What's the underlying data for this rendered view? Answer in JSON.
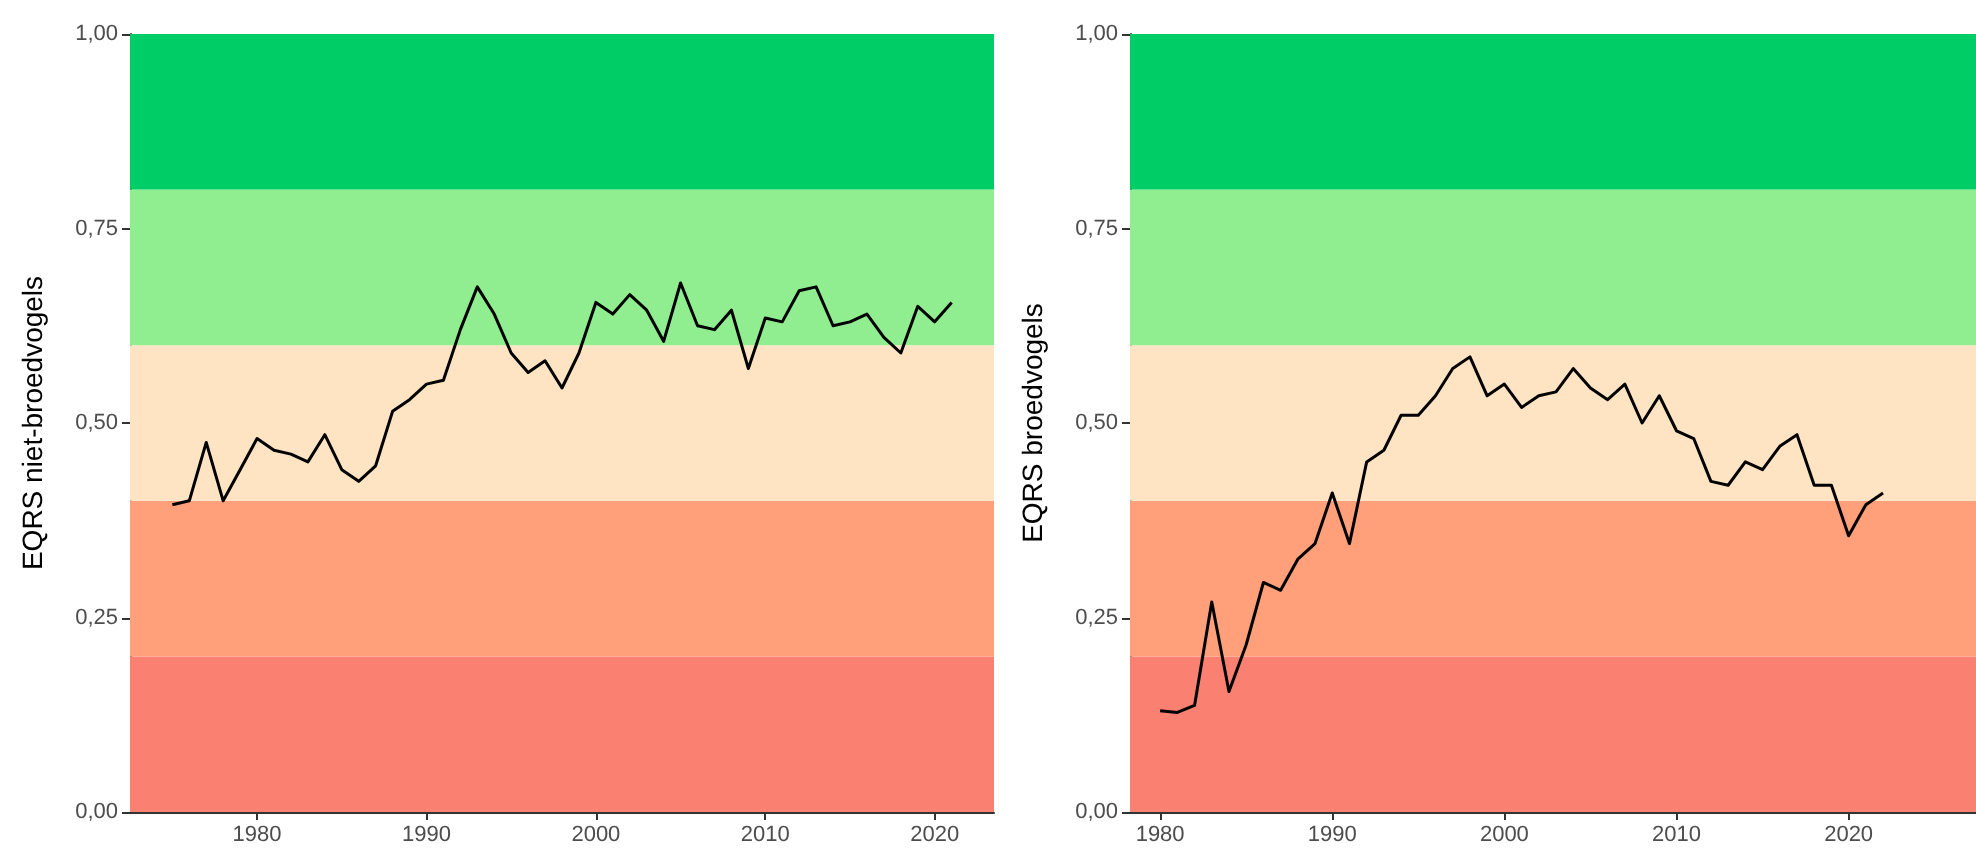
{
  "chart_data": [
    {
      "type": "line",
      "ylabel": "EQRS niet-broedvogels",
      "x": [
        1975,
        1976,
        1977,
        1978,
        1979,
        1980,
        1981,
        1982,
        1983,
        1984,
        1985,
        1986,
        1987,
        1988,
        1989,
        1990,
        1991,
        1992,
        1993,
        1994,
        1995,
        1996,
        1997,
        1998,
        1999,
        2000,
        2001,
        2002,
        2003,
        2004,
        2005,
        2006,
        2007,
        2008,
        2009,
        2010,
        2011,
        2012,
        2013,
        2014,
        2015,
        2016,
        2017,
        2018,
        2019,
        2020,
        2021
      ],
      "series": [
        {
          "color": "#000000",
          "values": [
            0.395,
            0.4,
            0.475,
            0.4,
            0.44,
            0.48,
            0.465,
            0.46,
            0.45,
            0.485,
            0.44,
            0.425,
            0.445,
            0.515,
            0.53,
            0.55,
            0.555,
            0.62,
            0.675,
            0.64,
            0.59,
            0.565,
            0.58,
            0.545,
            0.59,
            0.655,
            0.64,
            0.665,
            0.645,
            0.605,
            0.68,
            0.625,
            0.62,
            0.645,
            0.57,
            0.635,
            0.63,
            0.67,
            0.675,
            0.625,
            0.63,
            0.64,
            0.61,
            0.59,
            0.65,
            0.63,
            0.655
          ]
        }
      ],
      "xlim": [
        1972.5,
        2023.5
      ],
      "xticks": [
        1980,
        1990,
        2000,
        2010,
        2020
      ],
      "ylim": [
        0,
        1
      ],
      "yticks": [
        {
          "value": 0,
          "label": "0,00"
        },
        {
          "value": 0.25,
          "label": "0,25"
        },
        {
          "value": 0.5,
          "label": "0,50"
        },
        {
          "value": 0.75,
          "label": "0,75"
        },
        {
          "value": 1,
          "label": "1,00"
        }
      ],
      "bands": [
        {
          "axis": "y",
          "from": 0,
          "to": 0.2,
          "color": "#fa8072"
        },
        {
          "axis": "y",
          "from": 0.2,
          "to": 0.4,
          "color": "#ffa07a"
        },
        {
          "axis": "y",
          "from": 0.4,
          "to": 0.6,
          "color": "#ffe4c4"
        },
        {
          "axis": "y",
          "from": 0.6,
          "to": 0.8,
          "color": "#90ee90"
        },
        {
          "axis": "y",
          "from": 0.8,
          "to": 1,
          "color": "#00cd66"
        }
      ],
      "grid": false,
      "marker": "none",
      "line_style": "solid"
    },
    {
      "type": "line",
      "ylabel": "EQRS broedvogels",
      "x": [
        1980,
        1981,
        1982,
        1983,
        1984,
        1985,
        1986,
        1987,
        1988,
        1989,
        1990,
        1991,
        1992,
        1993,
        1994,
        1995,
        1996,
        1997,
        1998,
        1999,
        2000,
        2001,
        2002,
        2003,
        2004,
        2005,
        2006,
        2007,
        2008,
        2009,
        2010,
        2011,
        2012,
        2013,
        2014,
        2015,
        2016,
        2017,
        2018,
        2019,
        2020,
        2021,
        2022
      ],
      "series": [
        {
          "color": "#000000",
          "values": [
            0.13,
            0.128,
            0.137,
            0.27,
            0.155,
            0.215,
            0.295,
            0.285,
            0.325,
            0.345,
            0.41,
            0.345,
            0.45,
            0.465,
            0.51,
            0.51,
            0.535,
            0.57,
            0.585,
            0.535,
            0.55,
            0.52,
            0.535,
            0.54,
            0.57,
            0.545,
            0.53,
            0.55,
            0.5,
            0.535,
            0.49,
            0.48,
            0.425,
            0.42,
            0.45,
            0.44,
            0.47,
            0.485,
            0.42,
            0.42,
            0.355,
            0.395,
            0.41
          ]
        }
      ],
      "xlim": [
        1978.25,
        2027.4
      ],
      "xticks": [
        1980,
        1990,
        2000,
        2010,
        2020
      ],
      "ylim": [
        0,
        1
      ],
      "yticks": [
        {
          "value": 0,
          "label": "0,00"
        },
        {
          "value": 0.25,
          "label": "0,25"
        },
        {
          "value": 0.5,
          "label": "0,50"
        },
        {
          "value": 0.75,
          "label": "0,75"
        },
        {
          "value": 1,
          "label": "1,00"
        }
      ],
      "bands": [
        {
          "axis": "y",
          "from": 0,
          "to": 0.2,
          "color": "#fa8072"
        },
        {
          "axis": "y",
          "from": 0.2,
          "to": 0.4,
          "color": "#ffa07a"
        },
        {
          "axis": "y",
          "from": 0.4,
          "to": 0.6,
          "color": "#ffe4c4"
        },
        {
          "axis": "y",
          "from": 0.6,
          "to": 0.8,
          "color": "#90ee90"
        },
        {
          "axis": "y",
          "from": 0.8,
          "to": 1,
          "color": "#00cd66"
        }
      ],
      "grid": false,
      "marker": "none",
      "line_style": "solid"
    }
  ]
}
